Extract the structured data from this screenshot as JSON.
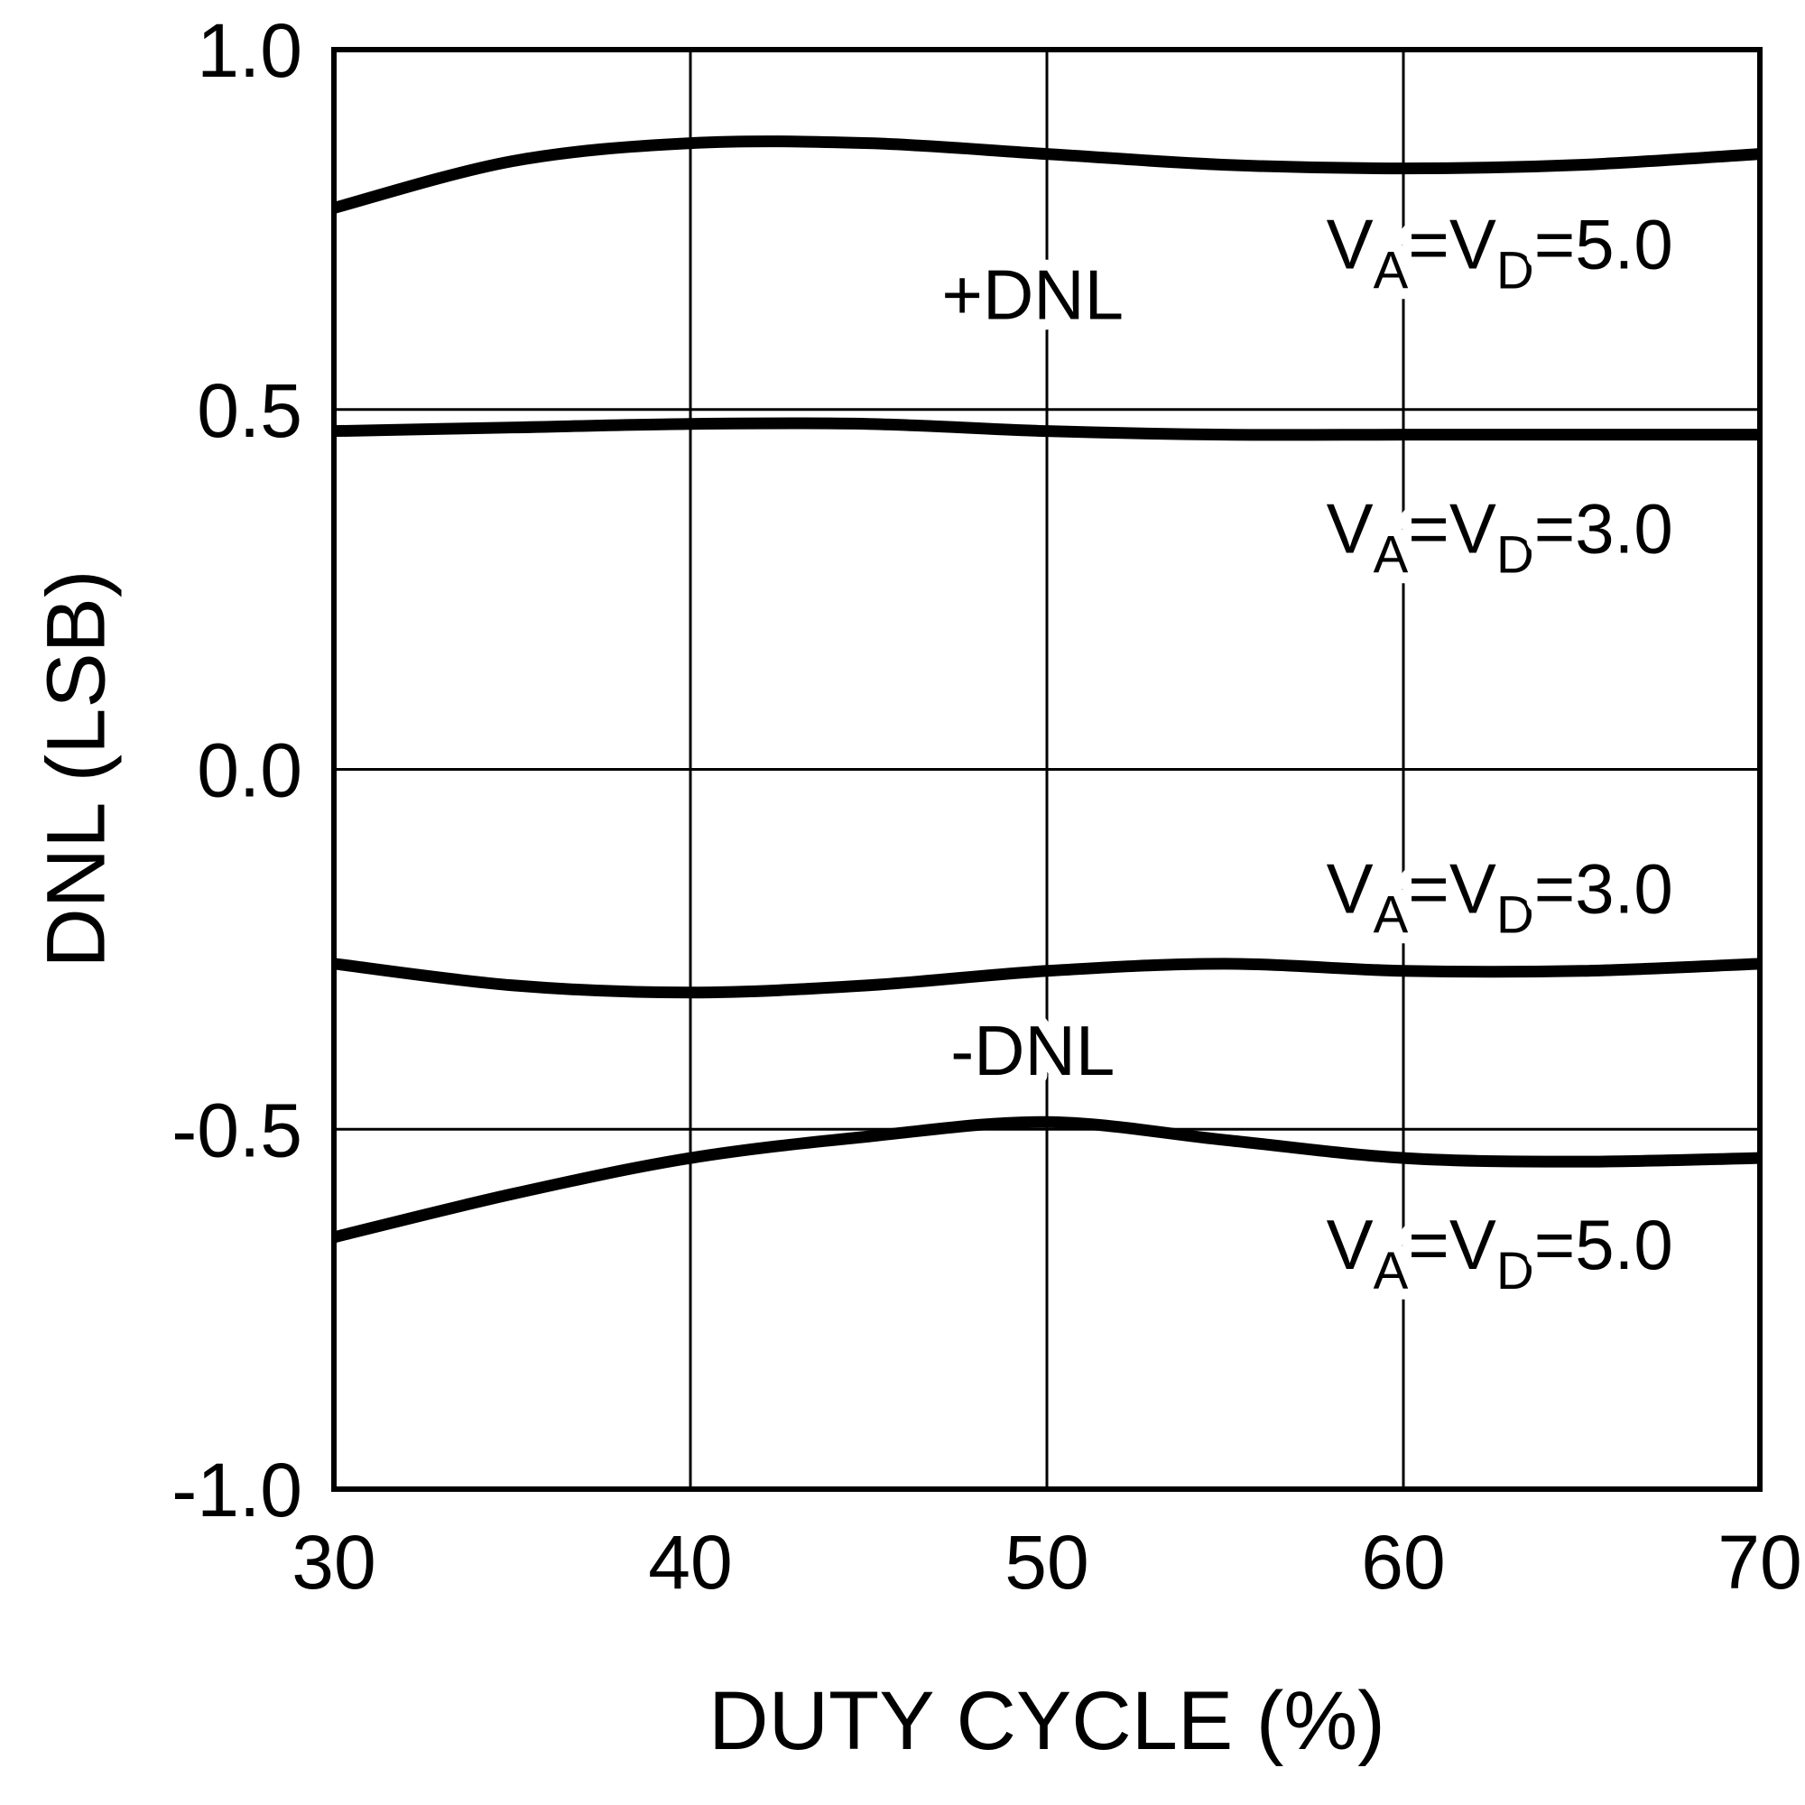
{
  "chart_data": {
    "type": "line",
    "title": "",
    "xlabel": "DUTY CYCLE (%)",
    "ylabel": "DNL (LSB)",
    "xlim": [
      30,
      70
    ],
    "ylim": [
      -1.0,
      1.0
    ],
    "x_ticks": [
      30,
      40,
      50,
      60,
      70
    ],
    "x_tick_labels": [
      "30",
      "40",
      "50",
      "60",
      "70"
    ],
    "y_ticks": [
      1.0,
      0.5,
      0.0,
      -0.5,
      -1.0
    ],
    "y_tick_labels": [
      "1.0",
      "0.5",
      "0.0",
      "-0.5",
      "-1.0"
    ],
    "grid": true,
    "legend_position": "none",
    "line_color": "#000000",
    "background_color": "#ffffff",
    "x": [
      30,
      35,
      40,
      45,
      50,
      55,
      60,
      65,
      70
    ],
    "series": [
      {
        "name": "+DNL VA=VD=5.0",
        "values": [
          0.78,
          0.845,
          0.87,
          0.87,
          0.855,
          0.84,
          0.835,
          0.84,
          0.855
        ]
      },
      {
        "name": "+DNL VA=VD=3.0",
        "values": [
          0.47,
          0.475,
          0.48,
          0.48,
          0.47,
          0.465,
          0.465,
          0.465,
          0.465
        ]
      },
      {
        "name": "-DNL VA=VD=3.0",
        "values": [
          -0.27,
          -0.3,
          -0.31,
          -0.3,
          -0.28,
          -0.27,
          -0.28,
          -0.28,
          -0.27
        ]
      },
      {
        "name": "-DNL VA=VD=5.0",
        "values": [
          -0.65,
          -0.59,
          -0.54,
          -0.51,
          -0.49,
          -0.515,
          -0.54,
          -0.545,
          -0.54
        ]
      }
    ],
    "annotations": [
      {
        "name": "plus-dnl-label",
        "x": 49.6,
        "y": 0.66,
        "segments": [
          {
            "text": "+DNL"
          }
        ]
      },
      {
        "name": "va5-top-label",
        "x": 62.7,
        "y": 0.73,
        "segments": [
          {
            "text": "V"
          },
          {
            "text": "A",
            "sub": true
          },
          {
            "text": "=V"
          },
          {
            "text": "D",
            "sub": true
          },
          {
            "text": "=5.0"
          }
        ]
      },
      {
        "name": "va3-top-label",
        "x": 62.7,
        "y": 0.335,
        "segments": [
          {
            "text": "V"
          },
          {
            "text": "A",
            "sub": true
          },
          {
            "text": "=V"
          },
          {
            "text": "D",
            "sub": true
          },
          {
            "text": "=3.0"
          }
        ]
      },
      {
        "name": "va3-bottom-label",
        "x": 62.7,
        "y": -0.165,
        "segments": [
          {
            "text": "V"
          },
          {
            "text": "A",
            "sub": true
          },
          {
            "text": "=V"
          },
          {
            "text": "D",
            "sub": true
          },
          {
            "text": "=3.0"
          }
        ]
      },
      {
        "name": "minus-dnl-label",
        "x": 49.6,
        "y": -0.39,
        "segments": [
          {
            "text": "-DNL"
          }
        ]
      },
      {
        "name": "va5-bottom-label",
        "x": 62.7,
        "y": -0.66,
        "segments": [
          {
            "text": "V"
          },
          {
            "text": "A",
            "sub": true
          },
          {
            "text": "=V"
          },
          {
            "text": "D",
            "sub": true
          },
          {
            "text": "=5.0"
          }
        ]
      }
    ]
  }
}
